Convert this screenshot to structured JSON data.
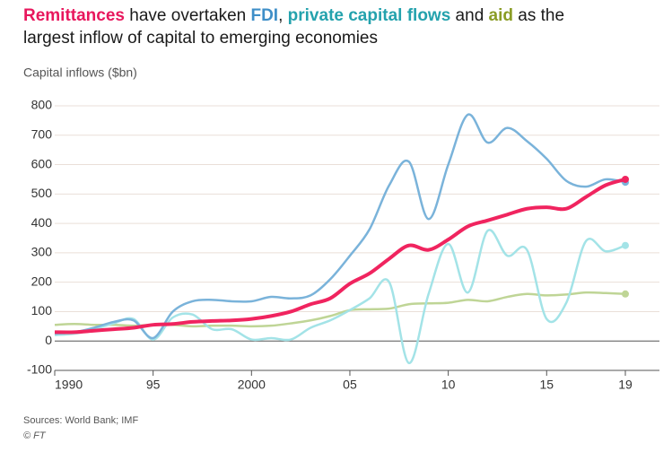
{
  "chart_data": {
    "type": "line",
    "title_parts": [
      " have overtaken ",
      ", ",
      " and ",
      " as the",
      "largest inflow of capital to emerging economies"
    ],
    "y_label": "Capital inflows ($bn)",
    "source": "Sources: World Bank; IMF",
    "credit": "© FT",
    "x": [
      1990,
      1991,
      1992,
      1993,
      1994,
      1995,
      1996,
      1997,
      1998,
      1999,
      2000,
      2001,
      2002,
      2003,
      2004,
      2005,
      2006,
      2007,
      2008,
      2009,
      2010,
      2011,
      2012,
      2013,
      2014,
      2015,
      2016,
      2017,
      2018,
      2019
    ],
    "xlim": [
      1990,
      2019
    ],
    "xticks": [
      1990,
      {
        "value": 1995,
        "label": "95"
      },
      2000,
      {
        "value": 2005,
        "label": "05"
      },
      {
        "value": 2010,
        "label": "10"
      },
      {
        "value": 2015,
        "label": "15"
      },
      {
        "value": 2019,
        "label": "19"
      }
    ],
    "ylim": [
      -100,
      800
    ],
    "yticks": [
      -100,
      0,
      100,
      200,
      300,
      400,
      500,
      600,
      700,
      800
    ],
    "grid": true,
    "series": [
      {
        "name": "Remittances",
        "color": "#f0245f",
        "title_color": "#e8175d",
        "values": [
          30,
          30,
          35,
          40,
          45,
          55,
          58,
          65,
          68,
          70,
          75,
          85,
          100,
          125,
          145,
          195,
          230,
          280,
          325,
          310,
          345,
          390,
          410,
          430,
          450,
          455,
          450,
          490,
          530,
          550
        ]
      },
      {
        "name": "FDI",
        "color": "#7ab3da",
        "title_color": "#3f8fc8",
        "values": [
          25,
          30,
          45,
          65,
          70,
          10,
          100,
          135,
          140,
          135,
          135,
          150,
          145,
          155,
          210,
          290,
          380,
          530,
          610,
          415,
          600,
          770,
          675,
          725,
          680,
          620,
          545,
          525,
          550,
          540
        ]
      },
      {
        "name": "private capital flows",
        "color": "#a3e3e7",
        "title_color": "#24a2ad",
        "values": [
          20,
          25,
          40,
          60,
          75,
          5,
          80,
          90,
          40,
          40,
          5,
          10,
          5,
          45,
          70,
          105,
          145,
          200,
          -75,
          160,
          330,
          165,
          375,
          290,
          310,
          75,
          130,
          340,
          305,
          325
        ]
      },
      {
        "name": "aid",
        "color": "#bfd596",
        "title_color": "#8a9c25",
        "values": [
          55,
          58,
          55,
          55,
          52,
          55,
          55,
          50,
          52,
          52,
          50,
          52,
          60,
          70,
          85,
          105,
          108,
          110,
          125,
          128,
          130,
          140,
          135,
          150,
          160,
          155,
          158,
          165,
          163,
          160
        ]
      }
    ]
  }
}
